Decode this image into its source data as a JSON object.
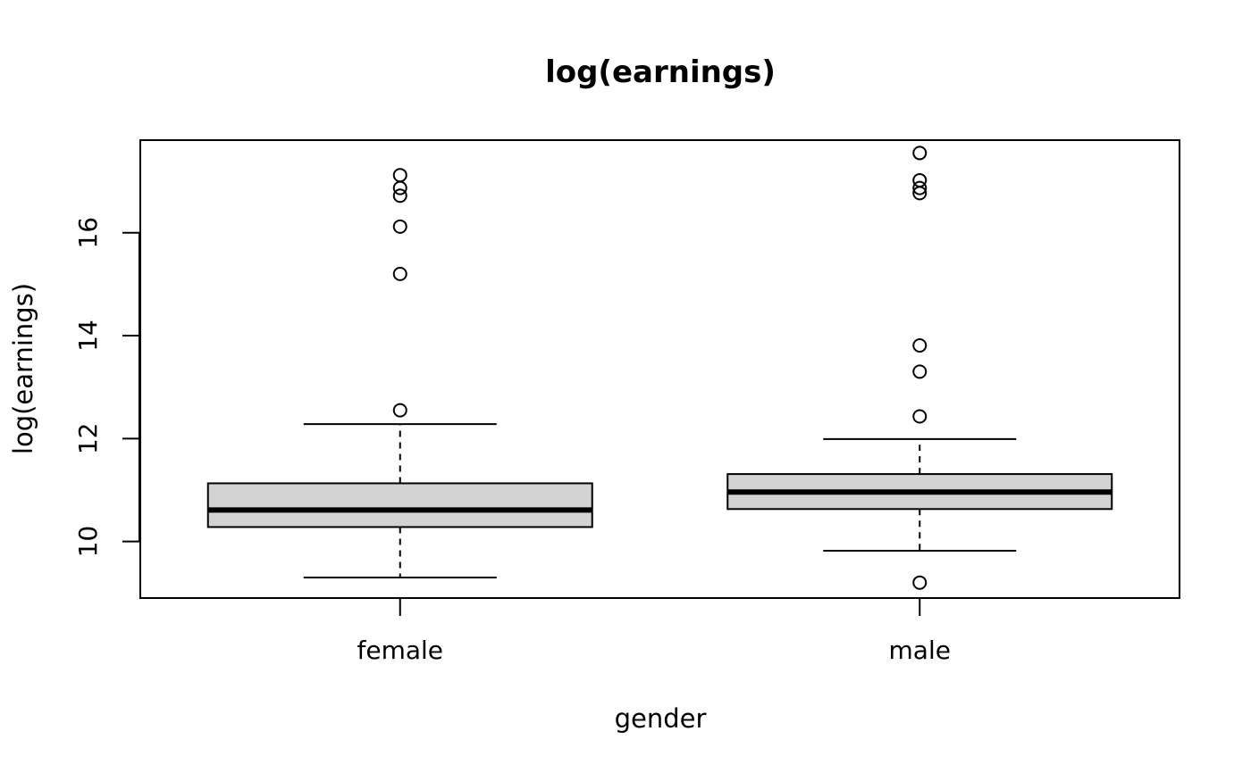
{
  "chart_data": {
    "type": "box",
    "title": "log(earnings)",
    "xlabel": "gender",
    "ylabel": "log(earnings)",
    "ylim": [
      8.9,
      17.8
    ],
    "yticks": [
      10,
      12,
      14,
      16
    ],
    "grid": false,
    "categories": [
      "female",
      "male"
    ],
    "boxes": [
      {
        "category": "female",
        "whisker_low": 9.3,
        "q1": 10.28,
        "median": 10.61,
        "q3": 11.13,
        "whisker_high": 12.28,
        "outliers": [
          12.55,
          15.2,
          16.12,
          16.72,
          16.87,
          17.12
        ]
      },
      {
        "category": "male",
        "whisker_low": 9.82,
        "q1": 10.63,
        "median": 10.96,
        "q3": 11.31,
        "whisker_high": 11.99,
        "outliers": [
          9.2,
          12.43,
          13.3,
          13.81,
          16.77,
          16.87,
          17.02,
          17.55
        ]
      }
    ],
    "box_fill": "#d3d3d3"
  }
}
